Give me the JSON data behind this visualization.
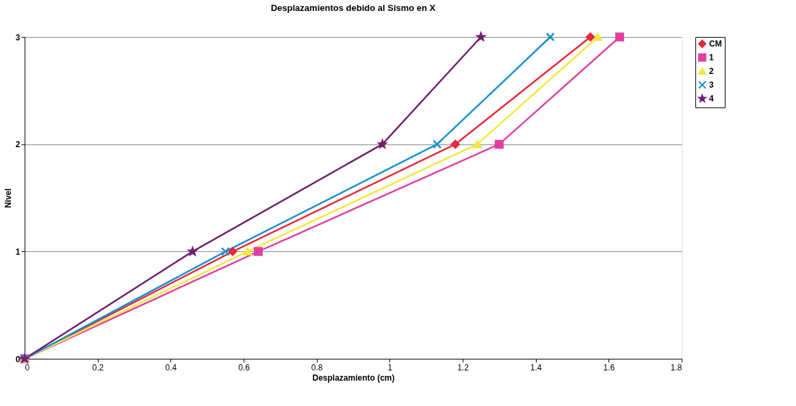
{
  "chart_data": {
    "type": "line",
    "title": "Desplazamientos debido al Sismo en X",
    "xlabel": "Desplazamiento (cm)",
    "ylabel": "Nivel",
    "series": [
      {
        "name": "CM",
        "color": "#e8283c",
        "marker": "diamond",
        "x": [
          0,
          0.57,
          1.18,
          1.55
        ],
        "values": [
          0,
          1,
          2,
          3
        ]
      },
      {
        "name": "1",
        "color": "#e040a0",
        "marker": "square",
        "x": [
          0,
          0.64,
          1.3,
          1.63
        ],
        "values": [
          0,
          1,
          2,
          3
        ]
      },
      {
        "name": "2",
        "color": "#f0e840",
        "marker": "triangle",
        "x": [
          0,
          0.61,
          1.24,
          1.57
        ],
        "values": [
          0,
          1,
          2,
          3
        ]
      },
      {
        "name": "3",
        "color": "#1890d0",
        "marker": "cross",
        "x": [
          0,
          0.55,
          1.13,
          1.44
        ],
        "values": [
          0,
          1,
          2,
          3
        ]
      },
      {
        "name": "4",
        "color": "#702070",
        "marker": "star",
        "x": [
          0,
          0.46,
          0.98,
          1.25
        ],
        "values": [
          0,
          1,
          2,
          3
        ]
      }
    ],
    "xlim": [
      0,
      1.8
    ],
    "xticks": [
      0,
      0.2,
      0.4,
      0.6,
      0.8,
      1,
      1.2,
      1.4,
      1.6,
      1.8
    ],
    "ylim": [
      0,
      3
    ],
    "yticks": [
      0,
      1,
      2,
      3
    ],
    "grid": "y",
    "legend": "right",
    "line_style": "solid"
  }
}
